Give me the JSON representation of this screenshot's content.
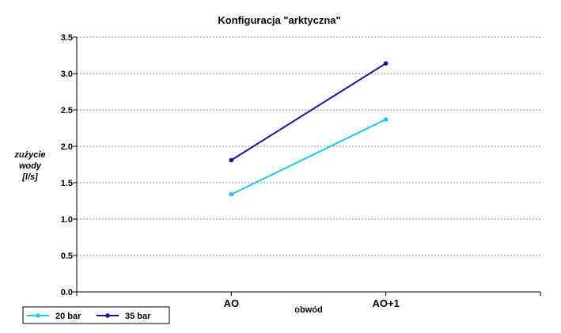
{
  "chart_data": {
    "type": "line",
    "title": "Konfiguracja \"arktyczna\"",
    "xlabel": "obwód",
    "ylabel_lines": [
      "zużycie",
      "wody",
      "[l/s]"
    ],
    "categories": [
      "AO",
      "AO+1"
    ],
    "ylim": [
      0.0,
      3.5
    ],
    "yticks": [
      "0.0",
      "0.5",
      "1.0",
      "1.5",
      "2.0",
      "2.5",
      "3.0",
      "3.5"
    ],
    "grid": true,
    "legend_position": "bottom-left",
    "series": [
      {
        "name": "20 bar",
        "values": [
          1.34,
          2.37
        ],
        "color": "#1ec8f0"
      },
      {
        "name": "35 bar",
        "values": [
          1.81,
          3.14
        ],
        "color": "#1818a8"
      }
    ]
  }
}
